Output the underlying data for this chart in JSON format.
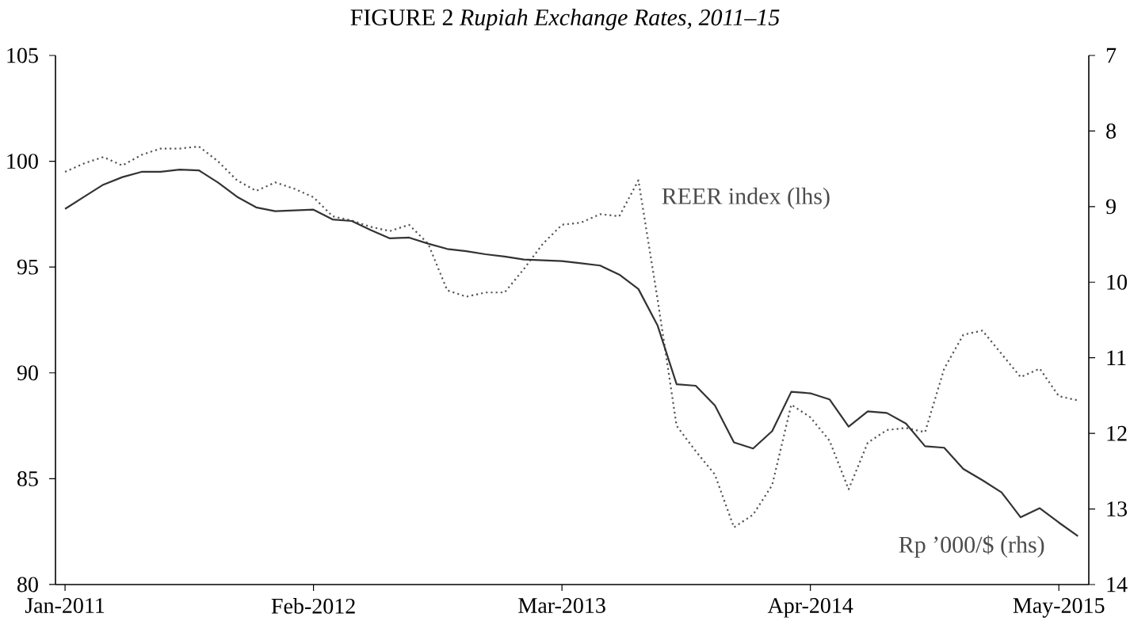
{
  "chart_data": {
    "type": "line",
    "title": "FIGURE 2 *Rupiah Exchange Rates, 2011–15*",
    "x": [
      "2011-01",
      "2011-02",
      "2011-03",
      "2011-04",
      "2011-05",
      "2011-06",
      "2011-07",
      "2011-08",
      "2011-09",
      "2011-10",
      "2011-11",
      "2011-12",
      "2012-01",
      "2012-02",
      "2012-03",
      "2012-04",
      "2012-05",
      "2012-06",
      "2012-07",
      "2012-08",
      "2012-09",
      "2012-10",
      "2012-11",
      "2012-12",
      "2013-01",
      "2013-02",
      "2013-03",
      "2013-04",
      "2013-05",
      "2013-06",
      "2013-07",
      "2013-08",
      "2013-09",
      "2013-10",
      "2013-11",
      "2013-12",
      "2014-01",
      "2014-02",
      "2014-03",
      "2014-04",
      "2014-05",
      "2014-06",
      "2014-07",
      "2014-08",
      "2014-09",
      "2014-10",
      "2014-11",
      "2014-12",
      "2015-01",
      "2015-02",
      "2015-03",
      "2015-04",
      "2015-05",
      "2015-06"
    ],
    "series": [
      {
        "name": "REER index (lhs)",
        "color": "#555555",
        "line_style": "dotted",
        "values": [
          99.5,
          99.9,
          100.2,
          99.8,
          100.3,
          100.6,
          100.6,
          100.7,
          100.0,
          99.1,
          98.6,
          99.0,
          98.7,
          98.3,
          97.4,
          97.2,
          96.9,
          96.7,
          97.0,
          96.1,
          93.9,
          93.6,
          93.8,
          93.8,
          94.9,
          96.1,
          97.0,
          97.1,
          97.5,
          97.4,
          99.1,
          93.5,
          87.5,
          86.3,
          85.2,
          82.7,
          83.3,
          84.7,
          88.5,
          87.9,
          86.8,
          84.5,
          86.7,
          87.3,
          87.4,
          87.2,
          90.2,
          91.8,
          92.0,
          90.9,
          89.8,
          90.2,
          88.9,
          88.7
        ]
      },
      {
        "name": "Rp ’000/$ (rhs)",
        "color": "#333333",
        "line_style": "solid",
        "axis": "y2",
        "values": [
          9.03,
          8.87,
          8.71,
          8.61,
          8.54,
          8.54,
          8.51,
          8.52,
          8.68,
          8.87,
          9.01,
          9.06,
          9.05,
          9.04,
          9.17,
          9.19,
          9.31,
          9.42,
          9.41,
          9.49,
          9.56,
          9.59,
          9.63,
          9.66,
          9.7,
          9.71,
          9.72,
          9.75,
          9.78,
          9.9,
          10.09,
          10.57,
          11.35,
          11.37,
          11.63,
          12.12,
          12.2,
          11.97,
          11.45,
          11.47,
          11.55,
          11.91,
          11.71,
          11.73,
          11.87,
          12.17,
          12.19,
          12.47,
          12.62,
          12.78,
          13.11,
          12.99,
          13.18,
          13.36
        ]
      }
    ],
    "xlim": [
      "2010-12-16",
      "2015-06-18"
    ],
    "xticks": [
      {
        "value": "2011-01",
        "label": "Jan-2011"
      },
      {
        "value": "2012-02",
        "label": "Feb-2012"
      },
      {
        "value": "2013-03",
        "label": "Mar-2013"
      },
      {
        "value": "2014-04",
        "label": "Apr-2014"
      },
      {
        "value": "2015-05",
        "label": "May-2015"
      }
    ],
    "ylim": [
      80,
      105
    ],
    "yticks": [
      80,
      85,
      90,
      95,
      100,
      105
    ],
    "y2lim": [
      14,
      7
    ],
    "y2ticks": [
      7,
      8,
      9,
      10,
      11,
      12,
      13,
      14
    ],
    "marker": "none",
    "grid": false
  }
}
